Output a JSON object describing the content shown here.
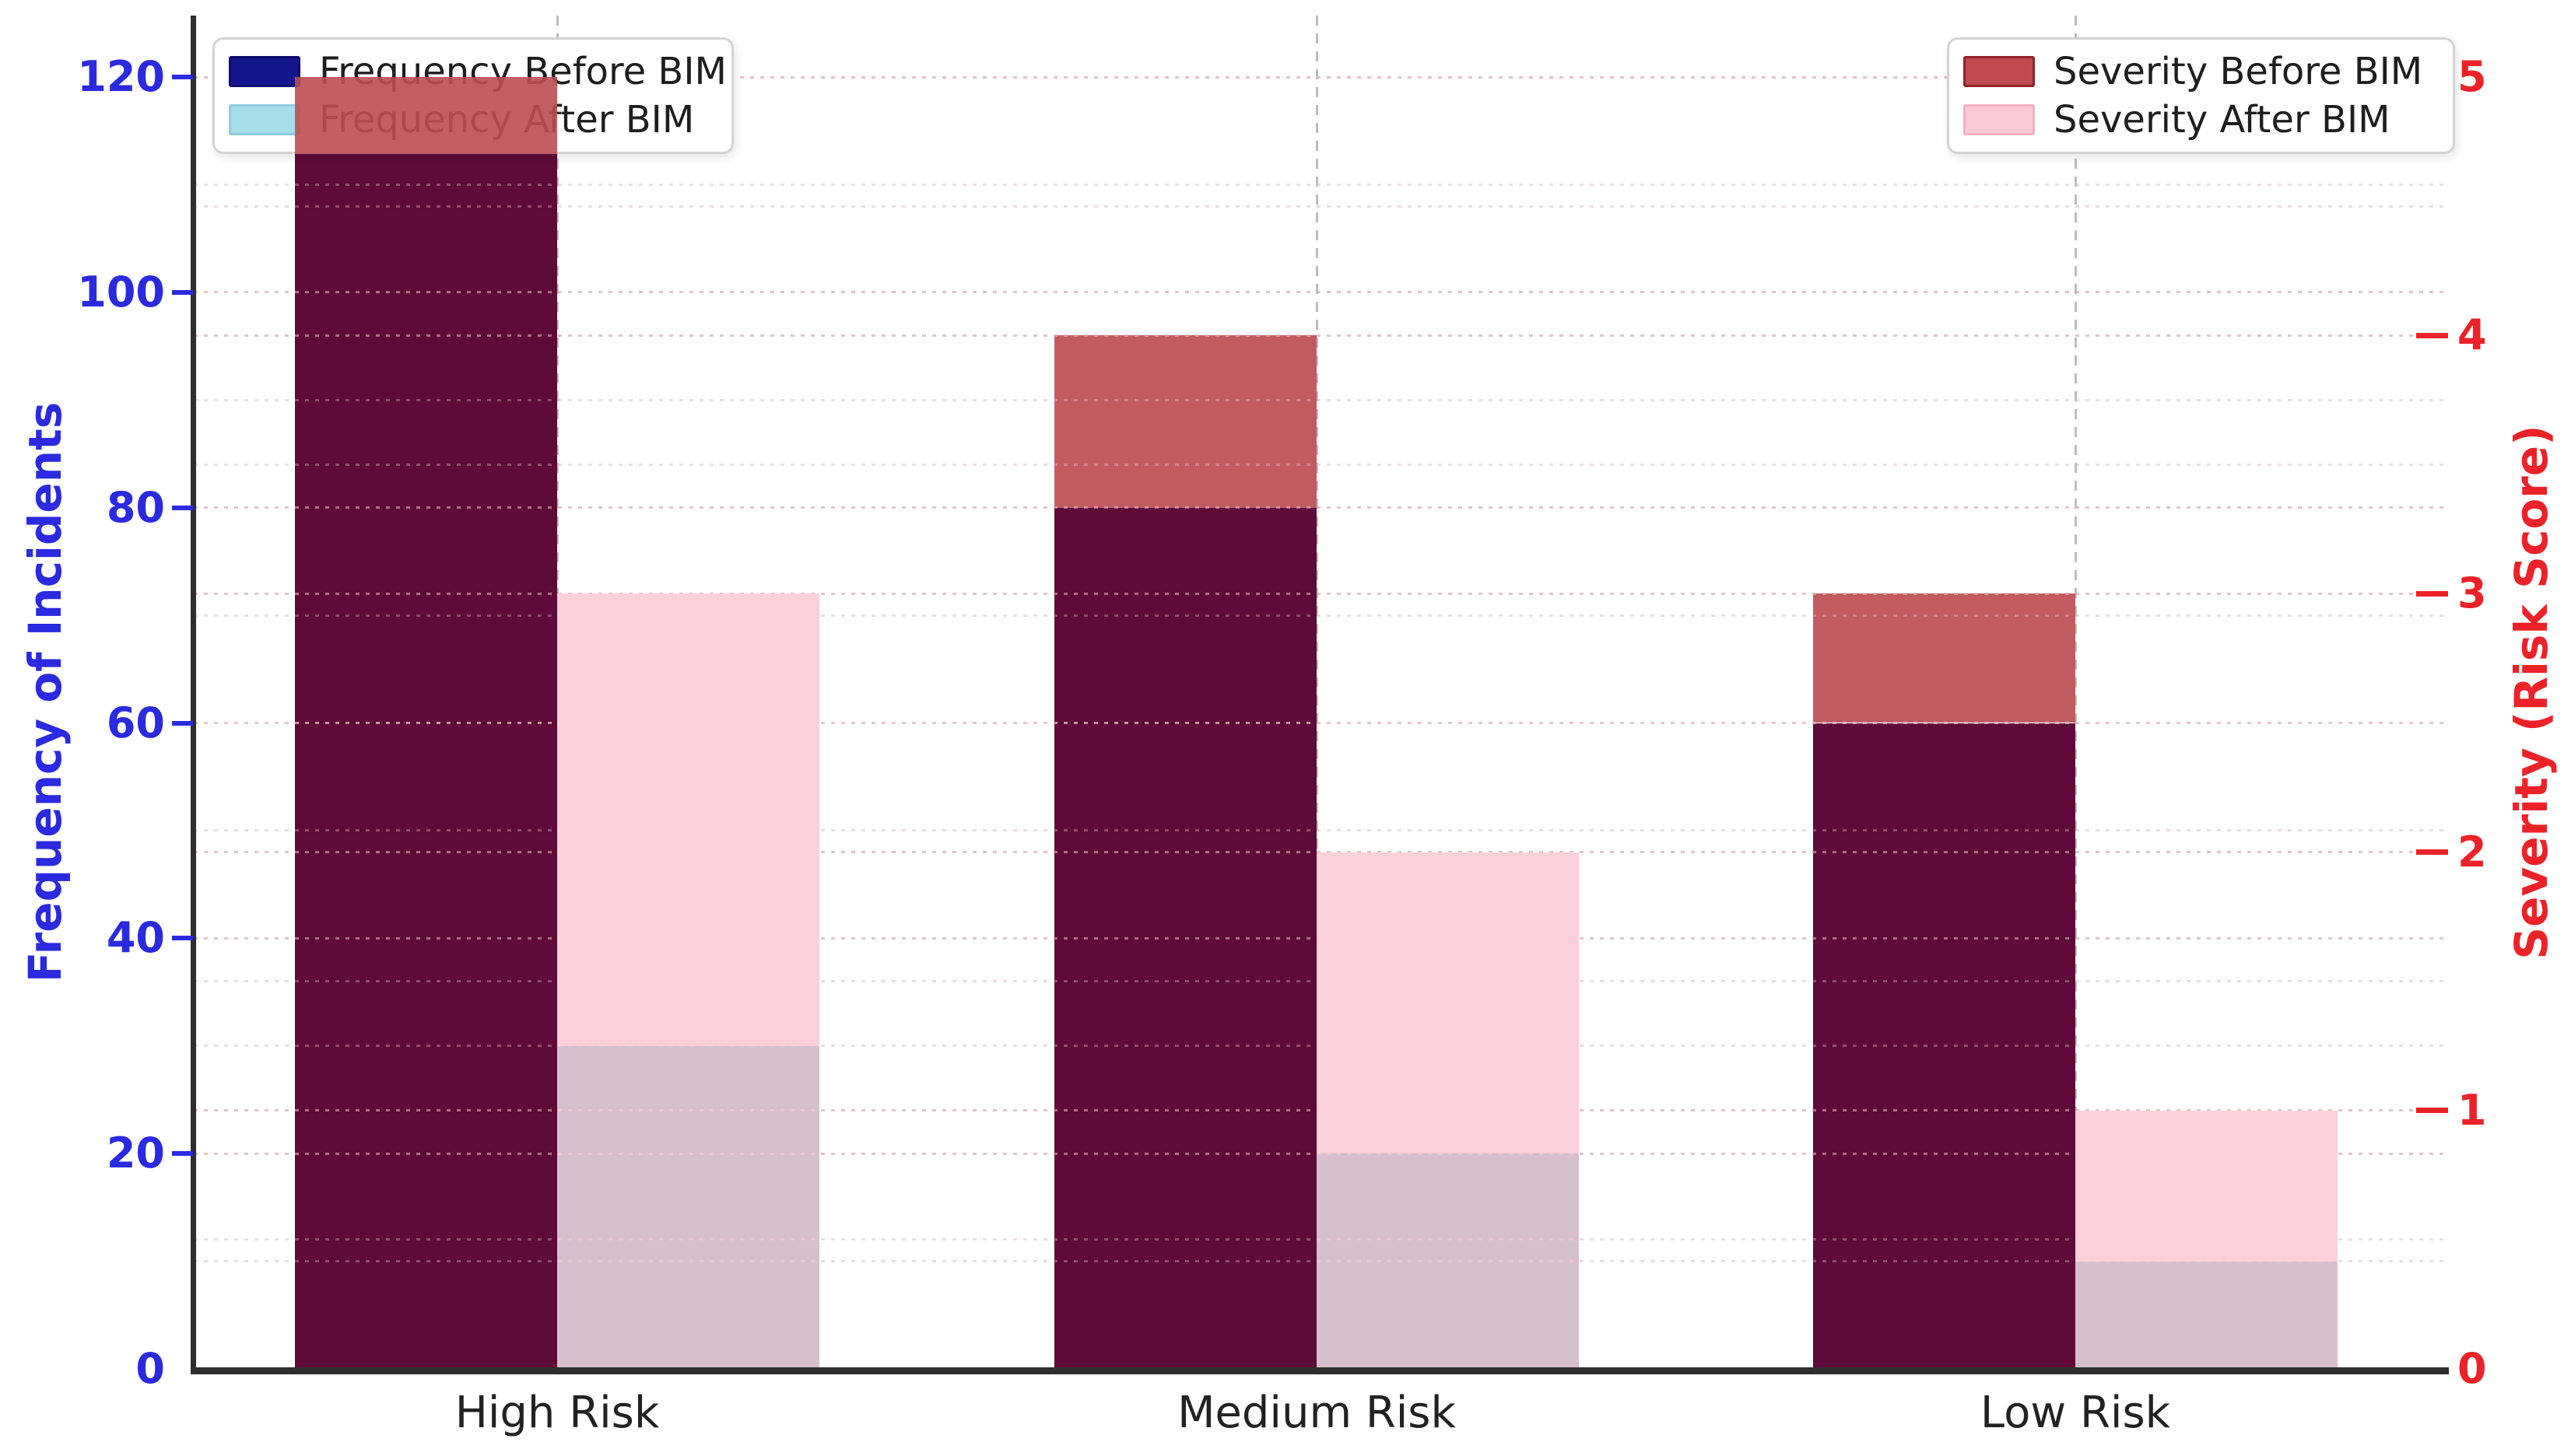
{
  "chart_data": {
    "type": "bar",
    "title": "",
    "categories": [
      "High Risk",
      "Medium Risk",
      "Low Risk"
    ],
    "series": [
      {
        "name": "Frequency Before BIM",
        "axis": "left",
        "values": [
          120,
          80,
          60
        ],
        "swatch_fill": "#15158D",
        "swatch_border": "#0D0D6E"
      },
      {
        "name": "Frequency After BIM",
        "axis": "left",
        "values": [
          30,
          20,
          10
        ],
        "swatch_fill": "#A7DCE9",
        "swatch_border": "#8FCBDD"
      },
      {
        "name": "Severity Before BIM",
        "axis": "right",
        "values": [
          5,
          4,
          3
        ],
        "swatch_fill": "#C04A50",
        "swatch_border": "#8E2429"
      },
      {
        "name": "Severity After BIM",
        "axis": "right",
        "values": [
          3,
          2,
          1
        ],
        "swatch_fill": "#FBC9D3",
        "swatch_border": "#F2B2C0"
      }
    ],
    "left_axis": {
      "label": "Frequency of Incidents",
      "color": "#2A2AE0",
      "ticks": [
        0,
        20,
        40,
        60,
        80,
        100,
        120
      ],
      "range": [
        0,
        120
      ],
      "minor_step": 10
    },
    "right_axis": {
      "label": "Severity (Risk Score)",
      "color": "#EC2228",
      "ticks": [
        0,
        1,
        2,
        3,
        4,
        5
      ],
      "range": [
        0,
        5
      ],
      "minor_step": 0.5
    },
    "legend_positions": [
      "upper left",
      "upper right"
    ],
    "grid": {
      "horizontal": "dotted (major + minor, both axes)",
      "vertical": "dashed at category centers"
    },
    "render_colors": {
      "before_overlap_maroon": "#5E0B39",
      "severity_cap_red": "#C25B60",
      "severity_after_pink": "#FBD0DB",
      "after_overlap_mauve": "#D6C0CE",
      "legend_overlay_red": "rgba(187,77,83,0.9)",
      "x_label_color": "#222222",
      "legend_text_color": "#1E1E1E"
    }
  }
}
